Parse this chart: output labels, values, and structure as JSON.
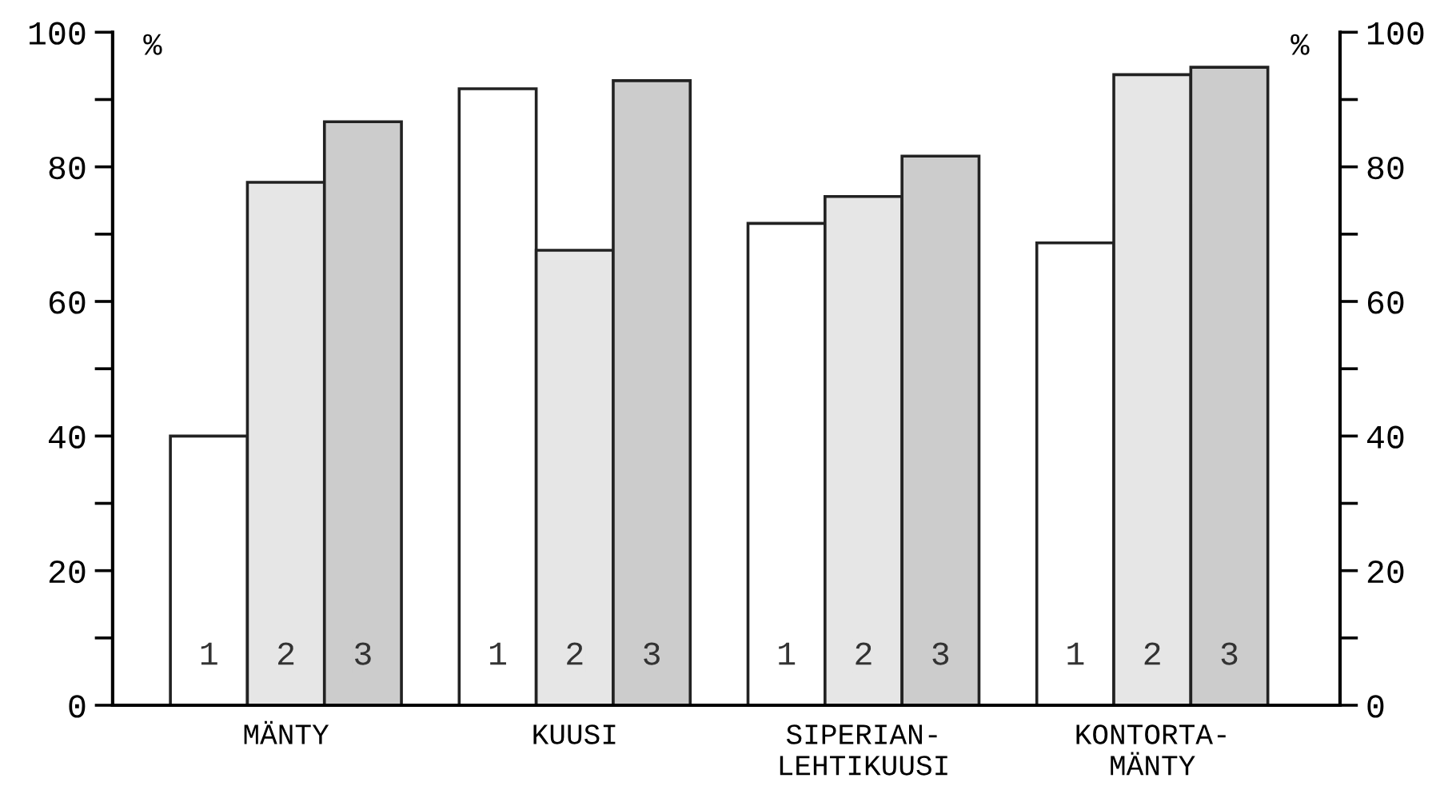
{
  "chart_data": {
    "type": "bar",
    "categories": [
      "MÄNTY",
      "KUUSI",
      "SIPERIAN-\nLEHTIKUUSI",
      "KONTORTA-\nMÄNTY"
    ],
    "series": [
      {
        "name": "1",
        "color": "#ffffff",
        "values": [
          40,
          91.6,
          71.6,
          68.7
        ]
      },
      {
        "name": "2",
        "color": "#e6e6e6",
        "values": [
          77.7,
          67.6,
          75.6,
          93.7
        ]
      },
      {
        "name": "3",
        "color": "#cccccc",
        "values": [
          86.7,
          92.8,
          81.6,
          94.8
        ]
      }
    ],
    "ylabel": "%",
    "y2label": "%",
    "ylim": [
      0,
      100
    ],
    "yticks": [
      0,
      {
        "value": 10,
        "label": null
      },
      20,
      {
        "value": 30,
        "label": null
      },
      40,
      {
        "value": 50,
        "label": null
      },
      60,
      {
        "value": 70,
        "label": null
      },
      80,
      {
        "value": 90,
        "label": null
      },
      100
    ],
    "y2lim": [
      0,
      100
    ],
    "y2ticks": [
      0,
      {
        "value": 10,
        "label": null
      },
      20,
      {
        "value": 30,
        "label": null
      },
      40,
      {
        "value": 50,
        "label": null
      },
      60,
      {
        "value": 70,
        "label": null
      },
      80,
      {
        "value": 90,
        "label": null
      },
      100
    ],
    "grid": false,
    "legend": false
  }
}
